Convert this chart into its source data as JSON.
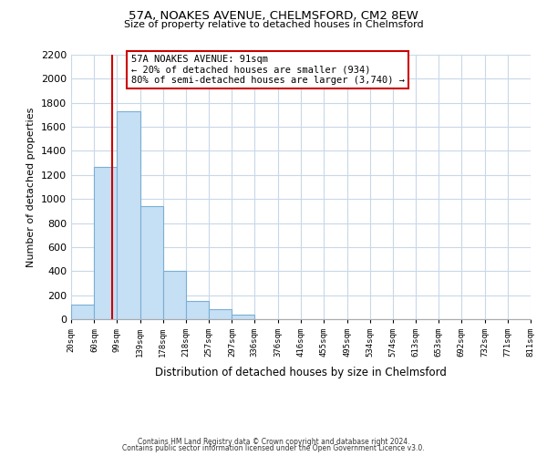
{
  "title1": "57A, NOAKES AVENUE, CHELMSFORD, CM2 8EW",
  "title2": "Size of property relative to detached houses in Chelmsford",
  "xlabel": "Distribution of detached houses by size in Chelmsford",
  "ylabel": "Number of detached properties",
  "bar_edges": [
    20,
    60,
    99,
    139,
    178,
    218,
    257,
    297,
    336,
    376,
    416,
    455,
    495,
    534,
    574,
    613,
    653,
    692,
    732,
    771,
    811
  ],
  "bar_heights": [
    120,
    1270,
    1730,
    940,
    400,
    150,
    80,
    35,
    0,
    0,
    0,
    0,
    0,
    0,
    0,
    0,
    0,
    0,
    0,
    0
  ],
  "bar_color": "#c5dff5",
  "bar_edge_color": "#7aafd4",
  "property_line_x": 91,
  "property_line_color": "#cc0000",
  "annotation_line1": "57A NOAKES AVENUE: 91sqm",
  "annotation_line2": "← 20% of detached houses are smaller (934)",
  "annotation_line3": "80% of semi-detached houses are larger (3,740) →",
  "annotation_box_color": "#ffffff",
  "annotation_box_edge_color": "#cc0000",
  "ylim": [
    0,
    2200
  ],
  "yticks": [
    0,
    200,
    400,
    600,
    800,
    1000,
    1200,
    1400,
    1600,
    1800,
    2000,
    2200
  ],
  "tick_labels": [
    "20sqm",
    "60sqm",
    "99sqm",
    "139sqm",
    "178sqm",
    "218sqm",
    "257sqm",
    "297sqm",
    "336sqm",
    "376sqm",
    "416sqm",
    "455sqm",
    "495sqm",
    "534sqm",
    "574sqm",
    "613sqm",
    "653sqm",
    "692sqm",
    "732sqm",
    "771sqm",
    "811sqm"
  ],
  "footer1": "Contains HM Land Registry data © Crown copyright and database right 2024.",
  "footer2": "Contains public sector information licensed under the Open Government Licence v3.0.",
  "grid_color": "#c8d8e8",
  "background_color": "#ffffff"
}
